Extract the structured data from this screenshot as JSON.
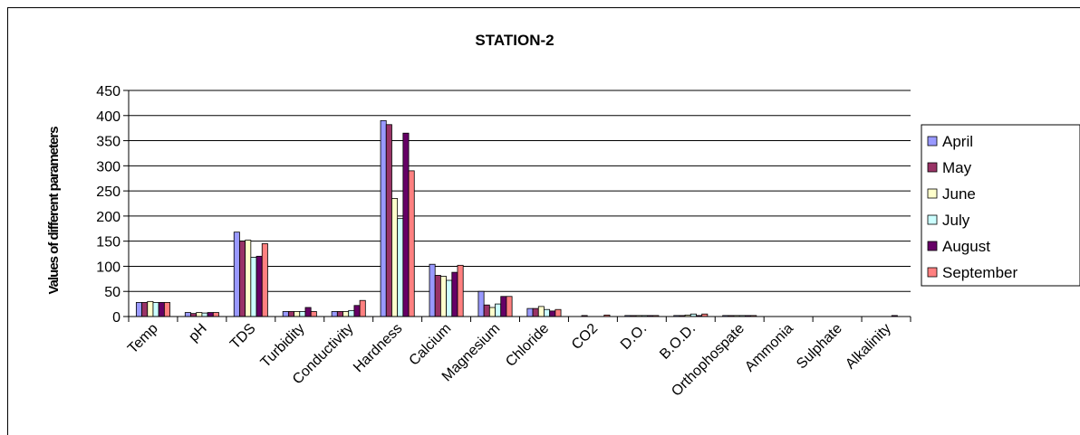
{
  "chart_data": {
    "type": "bar",
    "title": "STATION-2",
    "xlabel": "",
    "ylabel": "Values of different parameters",
    "ylim": [
      0,
      450
    ],
    "yticks": [
      0,
      50,
      100,
      150,
      200,
      250,
      300,
      350,
      400,
      450
    ],
    "grid": true,
    "legend_position": "right",
    "categories": [
      "Temp",
      "pH",
      "TDS",
      "Turbidity",
      "Conductivity",
      "Hardness",
      "Calcium",
      "Magnesium",
      "Chloride",
      "CO2",
      "D.O.",
      "B.O.D.",
      "Orthophospate",
      "Ammonia",
      "Sulphate",
      "Alkalinity"
    ],
    "series": [
      {
        "name": "April",
        "color": "#9999FF",
        "values": [
          28,
          8,
          168,
          10,
          10,
          390,
          104,
          50,
          16,
          0,
          2,
          2,
          2,
          0,
          0,
          0
        ]
      },
      {
        "name": "May",
        "color": "#993366",
        "values": [
          28,
          6,
          150,
          10,
          10,
          382,
          82,
          23,
          16,
          2,
          2,
          2,
          2,
          0,
          0,
          0
        ]
      },
      {
        "name": "June",
        "color": "#FFFFCC",
        "values": [
          30,
          8,
          152,
          10,
          10,
          235,
          80,
          18,
          20,
          0,
          2,
          3,
          2,
          0,
          0,
          0
        ]
      },
      {
        "name": "July",
        "color": "#CCFFFF",
        "values": [
          28,
          7,
          118,
          10,
          12,
          195,
          72,
          25,
          14,
          0,
          2,
          5,
          2,
          0,
          0,
          0
        ]
      },
      {
        "name": "August",
        "color": "#660066",
        "values": [
          28,
          8,
          120,
          18,
          22,
          365,
          88,
          40,
          11,
          0,
          2,
          2,
          2,
          0,
          0,
          2
        ]
      },
      {
        "name": "September",
        "color": "#FF8080",
        "values": [
          28,
          8,
          145,
          10,
          32,
          290,
          102,
          40,
          14,
          3,
          2,
          5,
          2,
          0,
          0,
          0
        ]
      }
    ]
  }
}
